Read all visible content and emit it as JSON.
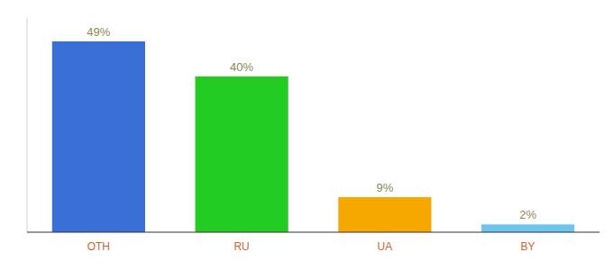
{
  "chart_data": {
    "type": "bar",
    "categories": [
      "OTH",
      "RU",
      "UA",
      "BY"
    ],
    "values": [
      49,
      40,
      9,
      2
    ],
    "value_labels": [
      "49%",
      "40%",
      "9%",
      "2%"
    ],
    "colors": [
      "#3a6fd8",
      "#22cc22",
      "#f5a800",
      "#6ec6f0"
    ],
    "ylim": [
      0,
      55
    ],
    "data_labels": true,
    "tick_labels": "x"
  }
}
